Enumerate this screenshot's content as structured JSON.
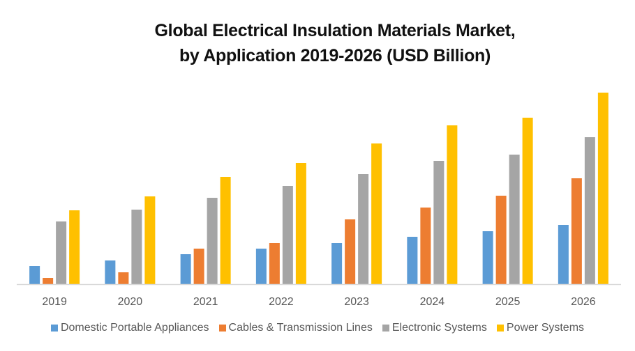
{
  "chart_data": {
    "type": "bar",
    "title_line1": "Global Electrical Insulation Materials Market,",
    "title_line2": "by Application 2019-2026 (USD Billion)",
    "xlabel": "",
    "ylabel": "",
    "value_note": "relative units (no y-axis shown)",
    "categories": [
      "2019",
      "2020",
      "2021",
      "2022",
      "2023",
      "2024",
      "2025",
      "2026"
    ],
    "series": [
      {
        "name": "Domestic Portable Appliances",
        "color": "#5B9BD5",
        "values": [
          26,
          34,
          43,
          51,
          59,
          68,
          76,
          85
        ]
      },
      {
        "name": "Cables & Transmission Lines",
        "color": "#ED7D31",
        "values": [
          9,
          17,
          51,
          59,
          93,
          110,
          127,
          152
        ]
      },
      {
        "name": "Electronic Systems",
        "color": "#A5A5A5",
        "values": [
          90,
          107,
          124,
          141,
          158,
          177,
          186,
          211
        ]
      },
      {
        "name": "Power Systems",
        "color": "#FFC000",
        "values": [
          106,
          126,
          154,
          174,
          202,
          228,
          239,
          275
        ]
      }
    ],
    "ylim": [
      0,
      275
    ],
    "grid": false,
    "legend_position": "bottom"
  }
}
